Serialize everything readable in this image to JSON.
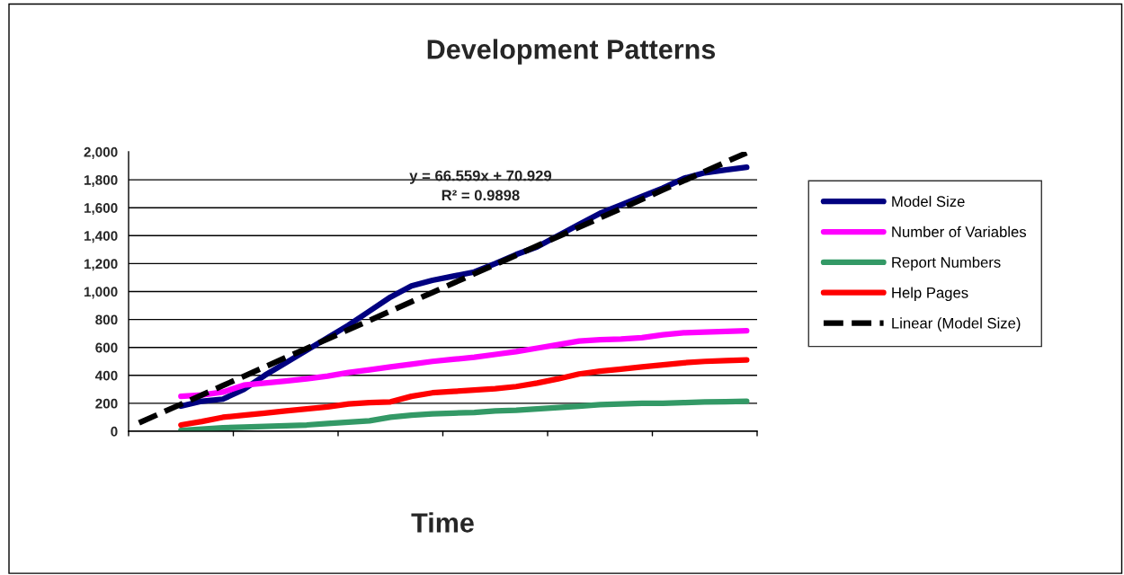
{
  "chart_data": {
    "type": "line",
    "title": "Development Patterns",
    "xlabel": "Time",
    "categories": [
      null,
      null,
      null,
      null,
      null,
      null,
      null,
      null,
      null,
      null,
      null,
      null,
      null,
      null,
      null,
      null,
      null,
      null,
      null,
      null,
      null,
      null,
      null,
      null,
      null,
      null,
      null,
      null,
      null,
      null
    ],
    "ylim": [
      0,
      2000
    ],
    "yticks": [
      {
        "value": 0,
        "label": "0"
      },
      {
        "value": 200,
        "label": "200"
      },
      {
        "value": 400,
        "label": "400"
      },
      {
        "value": 600,
        "label": "600"
      },
      {
        "value": 800,
        "label": "800"
      },
      {
        "value": 1000,
        "label": "1,000"
      },
      {
        "value": 1200,
        "label": "1,200"
      },
      {
        "value": 1400,
        "label": "1,400"
      },
      {
        "value": 1600,
        "label": "1,600"
      },
      {
        "value": 1800,
        "label": "1,800"
      },
      {
        "value": 2000,
        "label": "2,000"
      }
    ],
    "tick_labels": "y",
    "grid": "y",
    "legend": "right",
    "series": [
      {
        "name": "Model Size",
        "color": "#000080",
        "values": [
          null,
          null,
          180,
          215,
          230,
          300,
          400,
          490,
          580,
          670,
          760,
          860,
          960,
          1040,
          1080,
          1110,
          1140,
          1200,
          1265,
          1320,
          1400,
          1480,
          1560,
          1620,
          1680,
          1740,
          1810,
          1850,
          1870,
          1890
        ]
      },
      {
        "name": "Number of Variables",
        "color": "#ff00ff",
        "values": [
          null,
          null,
          250,
          260,
          280,
          330,
          345,
          360,
          375,
          395,
          420,
          440,
          460,
          480,
          500,
          515,
          530,
          550,
          570,
          595,
          620,
          645,
          655,
          660,
          670,
          690,
          705,
          710,
          715,
          720
        ]
      },
      {
        "name": "Report Numbers",
        "color": "#339966",
        "values": [
          null,
          null,
          5,
          15,
          25,
          30,
          35,
          40,
          45,
          55,
          65,
          75,
          100,
          115,
          125,
          130,
          135,
          145,
          150,
          160,
          170,
          180,
          190,
          195,
          200,
          200,
          205,
          210,
          212,
          215
        ]
      },
      {
        "name": "Help Pages",
        "color": "#ff0000",
        "values": [
          null,
          null,
          45,
          70,
          100,
          115,
          130,
          145,
          160,
          175,
          195,
          205,
          210,
          250,
          275,
          285,
          295,
          305,
          320,
          345,
          375,
          410,
          430,
          445,
          460,
          475,
          490,
          500,
          505,
          510
        ]
      },
      {
        "name": "Linear (Model Size)",
        "color": "#000000",
        "line_style": "dashed",
        "values": [
          60,
          127,
          193,
          260,
          327,
          393,
          460,
          527,
          593,
          660,
          727,
          793,
          860,
          927,
          993,
          1060,
          1127,
          1193,
          1260,
          1327,
          1393,
          1460,
          1527,
          1593,
          1660,
          1727,
          1793,
          1860,
          1927,
          1993
        ]
      }
    ],
    "annotations": [
      "y = 66.559x + 70.929",
      "R² = 0.9898"
    ]
  }
}
